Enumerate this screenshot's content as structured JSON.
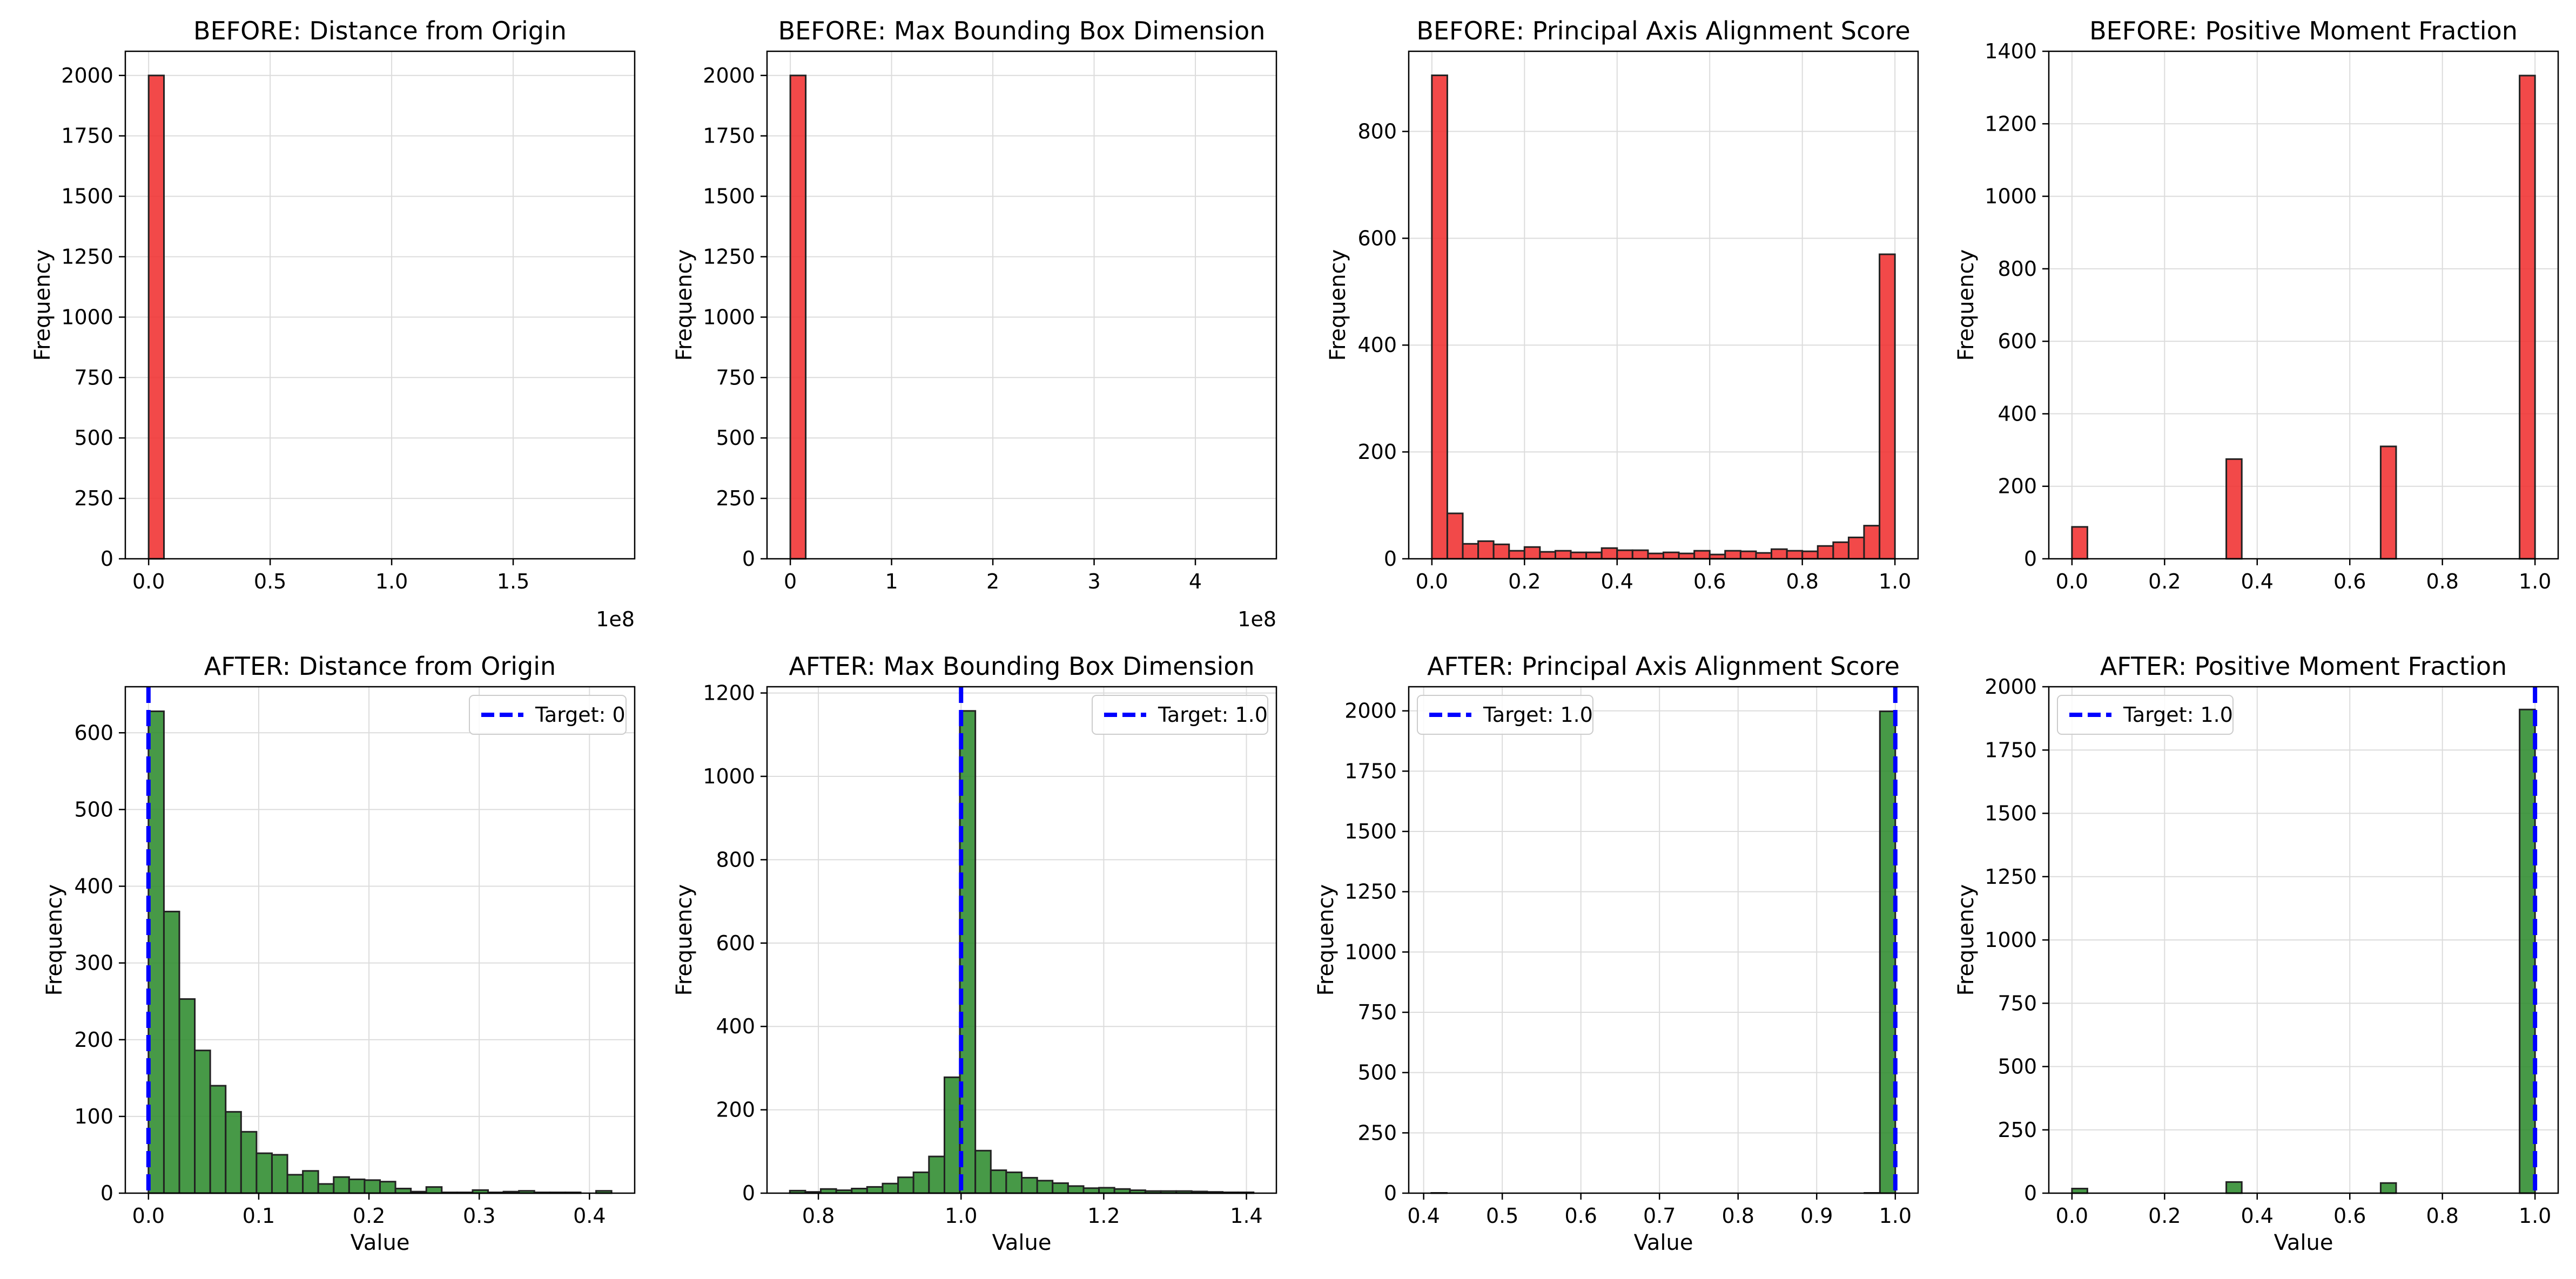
{
  "chart_data": [
    {
      "type": "bar",
      "title": "BEFORE: Distance from Origin",
      "xlabel": "",
      "ylabel": "Frequency",
      "xlim": [
        -0.096,
        2.0
      ],
      "ylim": [
        0,
        2100
      ],
      "xticks": [
        0,
        0.5,
        1.0,
        1.5
      ],
      "xtick_labels": [
        "0.0",
        "0.5",
        "1.0",
        "1.5"
      ],
      "yticks": [
        0,
        250,
        500,
        750,
        1000,
        1250,
        1500,
        1750,
        2000
      ],
      "ytick_labels": [
        "0",
        "250",
        "500",
        "750",
        "1000",
        "1250",
        "1500",
        "1750",
        "2000"
      ],
      "axis_offset_label": "1e8",
      "bins": [
        {
          "x0": 0.0,
          "x1": 0.063,
          "count": 2000
        }
      ],
      "color": "#f03030",
      "grid": true
    },
    {
      "type": "bar",
      "title": "BEFORE: Max Bounding Box Dimension",
      "xlabel": "",
      "ylabel": "Frequency",
      "xlim": [
        -0.23,
        4.8
      ],
      "ylim": [
        0,
        2100
      ],
      "xticks": [
        0,
        1,
        2,
        3,
        4
      ],
      "xtick_labels": [
        "0",
        "1",
        "2",
        "3",
        "4"
      ],
      "yticks": [
        0,
        250,
        500,
        750,
        1000,
        1250,
        1500,
        1750,
        2000
      ],
      "ytick_labels": [
        "0",
        "250",
        "500",
        "750",
        "1000",
        "1250",
        "1500",
        "1750",
        "2000"
      ],
      "axis_offset_label": "1e8",
      "bins": [
        {
          "x0": 0.0,
          "x1": 0.152,
          "count": 2000
        }
      ],
      "color": "#f03030",
      "grid": true
    },
    {
      "type": "bar",
      "title": "BEFORE: Principal Axis Alignment Score",
      "xlabel": "",
      "ylabel": "Frequency",
      "xlim": [
        -0.05,
        1.05
      ],
      "ylim": [
        0,
        950
      ],
      "xticks": [
        0,
        0.2,
        0.4,
        0.6,
        0.8,
        1.0
      ],
      "xtick_labels": [
        "0.0",
        "0.2",
        "0.4",
        "0.6",
        "0.8",
        "1.0"
      ],
      "yticks": [
        0,
        200,
        400,
        600,
        800
      ],
      "ytick_labels": [
        "0",
        "200",
        "400",
        "600",
        "800"
      ],
      "bins": [
        {
          "x0": 0.0,
          "x1": 0.0333,
          "count": 905
        },
        {
          "x0": 0.0333,
          "x1": 0.0667,
          "count": 85
        },
        {
          "x0": 0.0667,
          "x1": 0.1,
          "count": 28
        },
        {
          "x0": 0.1,
          "x1": 0.1333,
          "count": 33
        },
        {
          "x0": 0.1333,
          "x1": 0.1667,
          "count": 27
        },
        {
          "x0": 0.1667,
          "x1": 0.2,
          "count": 15
        },
        {
          "x0": 0.2,
          "x1": 0.2333,
          "count": 22
        },
        {
          "x0": 0.2333,
          "x1": 0.2667,
          "count": 13
        },
        {
          "x0": 0.2667,
          "x1": 0.3,
          "count": 15
        },
        {
          "x0": 0.3,
          "x1": 0.3333,
          "count": 12
        },
        {
          "x0": 0.3333,
          "x1": 0.3667,
          "count": 12
        },
        {
          "x0": 0.3667,
          "x1": 0.4,
          "count": 20
        },
        {
          "x0": 0.4,
          "x1": 0.4333,
          "count": 16
        },
        {
          "x0": 0.4333,
          "x1": 0.4667,
          "count": 16
        },
        {
          "x0": 0.4667,
          "x1": 0.5,
          "count": 10
        },
        {
          "x0": 0.5,
          "x1": 0.5333,
          "count": 12
        },
        {
          "x0": 0.5333,
          "x1": 0.5667,
          "count": 10
        },
        {
          "x0": 0.5667,
          "x1": 0.6,
          "count": 15
        },
        {
          "x0": 0.6,
          "x1": 0.6333,
          "count": 8
        },
        {
          "x0": 0.6333,
          "x1": 0.6667,
          "count": 15
        },
        {
          "x0": 0.6667,
          "x1": 0.7,
          "count": 14
        },
        {
          "x0": 0.7,
          "x1": 0.7333,
          "count": 11
        },
        {
          "x0": 0.7333,
          "x1": 0.7667,
          "count": 18
        },
        {
          "x0": 0.7667,
          "x1": 0.8,
          "count": 15
        },
        {
          "x0": 0.8,
          "x1": 0.8333,
          "count": 14
        },
        {
          "x0": 0.8333,
          "x1": 0.8667,
          "count": 24
        },
        {
          "x0": 0.8667,
          "x1": 0.9,
          "count": 31
        },
        {
          "x0": 0.9,
          "x1": 0.9333,
          "count": 40
        },
        {
          "x0": 0.9333,
          "x1": 0.9667,
          "count": 62
        },
        {
          "x0": 0.9667,
          "x1": 1.0,
          "count": 570
        }
      ],
      "color": "#f03030",
      "grid": true
    },
    {
      "type": "bar",
      "title": "BEFORE: Positive Moment Fraction",
      "xlabel": "",
      "ylabel": "Frequency",
      "xlim": [
        -0.05,
        1.05
      ],
      "ylim": [
        0,
        1400
      ],
      "xticks": [
        0,
        0.2,
        0.4,
        0.6,
        0.8,
        1.0
      ],
      "xtick_labels": [
        "0.0",
        "0.2",
        "0.4",
        "0.6",
        "0.8",
        "1.0"
      ],
      "yticks": [
        0,
        200,
        400,
        600,
        800,
        1000,
        1200,
        1400
      ],
      "ytick_labels": [
        "0",
        "200",
        "400",
        "600",
        "800",
        "1000",
        "1200",
        "1400"
      ],
      "bins": [
        {
          "x0": 0.0,
          "x1": 0.0333,
          "count": 88
        },
        {
          "x0": 0.3333,
          "x1": 0.3667,
          "count": 275
        },
        {
          "x0": 0.6667,
          "x1": 0.7,
          "count": 310
        },
        {
          "x0": 0.9667,
          "x1": 1.0,
          "count": 1333
        }
      ],
      "color": "#f03030",
      "grid": true
    },
    {
      "type": "bar",
      "title": "AFTER: Distance from Origin",
      "xlabel": "Value",
      "ylabel": "Frequency",
      "xlim": [
        -0.021,
        0.441
      ],
      "ylim": [
        0,
        660
      ],
      "xticks": [
        0,
        0.1,
        0.2,
        0.3,
        0.4
      ],
      "xtick_labels": [
        "0.0",
        "0.1",
        "0.2",
        "0.3",
        "0.4"
      ],
      "yticks": [
        0,
        100,
        200,
        300,
        400,
        500,
        600
      ],
      "ytick_labels": [
        "0",
        "100",
        "200",
        "300",
        "400",
        "500",
        "600"
      ],
      "bins": [
        {
          "x0": 0.0,
          "x1": 0.014,
          "count": 628
        },
        {
          "x0": 0.014,
          "x1": 0.028,
          "count": 367
        },
        {
          "x0": 0.028,
          "x1": 0.042,
          "count": 253
        },
        {
          "x0": 0.042,
          "x1": 0.056,
          "count": 186
        },
        {
          "x0": 0.056,
          "x1": 0.07,
          "count": 140
        },
        {
          "x0": 0.07,
          "x1": 0.084,
          "count": 106
        },
        {
          "x0": 0.084,
          "x1": 0.098,
          "count": 80
        },
        {
          "x0": 0.098,
          "x1": 0.112,
          "count": 52
        },
        {
          "x0": 0.112,
          "x1": 0.126,
          "count": 50
        },
        {
          "x0": 0.126,
          "x1": 0.14,
          "count": 24
        },
        {
          "x0": 0.14,
          "x1": 0.154,
          "count": 29
        },
        {
          "x0": 0.154,
          "x1": 0.168,
          "count": 12
        },
        {
          "x0": 0.168,
          "x1": 0.182,
          "count": 21
        },
        {
          "x0": 0.182,
          "x1": 0.196,
          "count": 18
        },
        {
          "x0": 0.196,
          "x1": 0.21,
          "count": 17
        },
        {
          "x0": 0.21,
          "x1": 0.224,
          "count": 15
        },
        {
          "x0": 0.224,
          "x1": 0.238,
          "count": 6
        },
        {
          "x0": 0.238,
          "x1": 0.252,
          "count": 2
        },
        {
          "x0": 0.252,
          "x1": 0.266,
          "count": 8
        },
        {
          "x0": 0.266,
          "x1": 0.28,
          "count": 1
        },
        {
          "x0": 0.28,
          "x1": 0.294,
          "count": 1
        },
        {
          "x0": 0.294,
          "x1": 0.308,
          "count": 4
        },
        {
          "x0": 0.308,
          "x1": 0.322,
          "count": 1
        },
        {
          "x0": 0.322,
          "x1": 0.336,
          "count": 2
        },
        {
          "x0": 0.336,
          "x1": 0.35,
          "count": 3
        },
        {
          "x0": 0.35,
          "x1": 0.364,
          "count": 1
        },
        {
          "x0": 0.364,
          "x1": 0.378,
          "count": 1
        },
        {
          "x0": 0.378,
          "x1": 0.392,
          "count": 1
        },
        {
          "x0": 0.392,
          "x1": 0.406,
          "count": 0
        },
        {
          "x0": 0.406,
          "x1": 0.42,
          "count": 3
        }
      ],
      "color": "#2e8b2e",
      "reference_line": {
        "x": 0,
        "label": "Target: 0",
        "color": "#0000ff"
      },
      "legend_position": "upper right",
      "grid": true
    },
    {
      "type": "bar",
      "title": "AFTER: Max Bounding Box Dimension",
      "xlabel": "Value",
      "ylabel": "Frequency",
      "xlim": [
        0.728,
        1.442
      ],
      "ylim": [
        0,
        1215
      ],
      "xticks": [
        0.8,
        1.0,
        1.2,
        1.4
      ],
      "xtick_labels": [
        "0.8",
        "1.0",
        "1.2",
        "1.4"
      ],
      "yticks": [
        0,
        200,
        400,
        600,
        800,
        1000,
        1200
      ],
      "ytick_labels": [
        "0",
        "200",
        "400",
        "600",
        "800",
        "1000",
        "1200"
      ],
      "bins": [
        {
          "x0": 0.76,
          "x1": 0.7817,
          "count": 6
        },
        {
          "x0": 0.7817,
          "x1": 0.8033,
          "count": 3
        },
        {
          "x0": 0.8033,
          "x1": 0.825,
          "count": 10
        },
        {
          "x0": 0.825,
          "x1": 0.8467,
          "count": 7
        },
        {
          "x0": 0.8467,
          "x1": 0.8683,
          "count": 11
        },
        {
          "x0": 0.8683,
          "x1": 0.89,
          "count": 15
        },
        {
          "x0": 0.89,
          "x1": 0.9117,
          "count": 23
        },
        {
          "x0": 0.9117,
          "x1": 0.9333,
          "count": 38
        },
        {
          "x0": 0.9333,
          "x1": 0.955,
          "count": 50
        },
        {
          "x0": 0.955,
          "x1": 0.9767,
          "count": 88
        },
        {
          "x0": 0.9767,
          "x1": 0.9983,
          "count": 278
        },
        {
          "x0": 0.9983,
          "x1": 1.02,
          "count": 1157
        },
        {
          "x0": 1.02,
          "x1": 1.0417,
          "count": 102
        },
        {
          "x0": 1.0417,
          "x1": 1.0633,
          "count": 55
        },
        {
          "x0": 1.0633,
          "x1": 1.085,
          "count": 50
        },
        {
          "x0": 1.085,
          "x1": 1.1067,
          "count": 37
        },
        {
          "x0": 1.1067,
          "x1": 1.1283,
          "count": 30
        },
        {
          "x0": 1.1283,
          "x1": 1.15,
          "count": 24
        },
        {
          "x0": 1.15,
          "x1": 1.1717,
          "count": 17
        },
        {
          "x0": 1.1717,
          "x1": 1.1933,
          "count": 12
        },
        {
          "x0": 1.1933,
          "x1": 1.215,
          "count": 13
        },
        {
          "x0": 1.215,
          "x1": 1.2367,
          "count": 10
        },
        {
          "x0": 1.2367,
          "x1": 1.2583,
          "count": 7
        },
        {
          "x0": 1.2583,
          "x1": 1.28,
          "count": 5
        },
        {
          "x0": 1.28,
          "x1": 1.3017,
          "count": 5
        },
        {
          "x0": 1.3017,
          "x1": 1.3233,
          "count": 5
        },
        {
          "x0": 1.3233,
          "x1": 1.345,
          "count": 4
        },
        {
          "x0": 1.345,
          "x1": 1.3667,
          "count": 3
        },
        {
          "x0": 1.3667,
          "x1": 1.3883,
          "count": 2
        },
        {
          "x0": 1.3883,
          "x1": 1.41,
          "count": 2
        }
      ],
      "color": "#2e8b2e",
      "reference_line": {
        "x": 1.0,
        "label": "Target: 1.0",
        "color": "#0000ff"
      },
      "legend_position": "upper right",
      "grid": true
    },
    {
      "type": "bar",
      "title": "AFTER: Principal Axis Alignment Score",
      "xlabel": "Value",
      "ylabel": "Frequency",
      "xlim": [
        0.381,
        1.029
      ],
      "ylim": [
        0,
        2100
      ],
      "xticks": [
        0.4,
        0.5,
        0.6,
        0.7,
        0.8,
        0.9,
        1.0
      ],
      "xtick_labels": [
        "0.4",
        "0.5",
        "0.6",
        "0.7",
        "0.8",
        "0.9",
        "1.0"
      ],
      "yticks": [
        0,
        250,
        500,
        750,
        1000,
        1250,
        1500,
        1750,
        2000
      ],
      "ytick_labels": [
        "0",
        "250",
        "500",
        "750",
        "1000",
        "1250",
        "1500",
        "1750",
        "2000"
      ],
      "bins": [
        {
          "x0": 0.4098,
          "x1": 0.4294,
          "count": 1
        },
        {
          "x0": 0.9608,
          "x1": 0.9804,
          "count": 1
        },
        {
          "x0": 0.9804,
          "x1": 1.0,
          "count": 1998
        }
      ],
      "color": "#2e8b2e",
      "reference_line": {
        "x": 1.0,
        "label": "Target: 1.0",
        "color": "#0000ff"
      },
      "legend_position": "upper left",
      "grid": true
    },
    {
      "type": "bar",
      "title": "AFTER: Positive Moment Fraction",
      "xlabel": "Value",
      "ylabel": "Frequency",
      "xlim": [
        -0.05,
        1.05
      ],
      "ylim": [
        0,
        2000
      ],
      "xticks": [
        0,
        0.2,
        0.4,
        0.6,
        0.8,
        1.0
      ],
      "xtick_labels": [
        "0.0",
        "0.2",
        "0.4",
        "0.6",
        "0.8",
        "1.0"
      ],
      "yticks": [
        0,
        250,
        500,
        750,
        1000,
        1250,
        1500,
        1750,
        2000
      ],
      "ytick_labels": [
        "0",
        "250",
        "500",
        "750",
        "1000",
        "1250",
        "1500",
        "1750",
        "2000"
      ],
      "bins": [
        {
          "x0": 0.0,
          "x1": 0.0333,
          "count": 18
        },
        {
          "x0": 0.3333,
          "x1": 0.3667,
          "count": 44
        },
        {
          "x0": 0.6667,
          "x1": 0.7,
          "count": 40
        },
        {
          "x0": 0.9667,
          "x1": 1.0,
          "count": 1910
        }
      ],
      "color": "#2e8b2e",
      "reference_line": {
        "x": 1.0,
        "label": "Target: 1.0",
        "color": "#0000ff"
      },
      "legend_position": "upper left",
      "grid": true
    }
  ]
}
